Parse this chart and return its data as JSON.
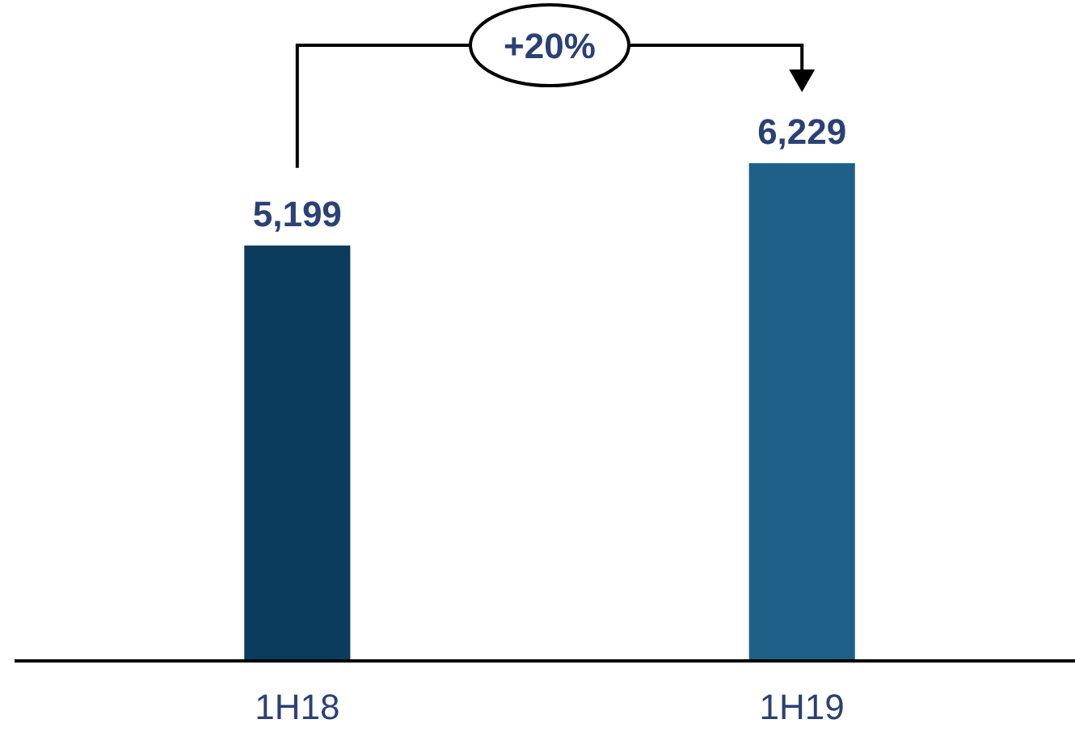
{
  "chart_data": {
    "type": "bar",
    "categories": [
      "1H18",
      "1H19"
    ],
    "values": [
      5199,
      6229
    ],
    "colors": [
      "#0b3c5d",
      "#1f6088"
    ],
    "value_labels": [
      "5,199",
      "6,229"
    ],
    "annotations": [
      "+20%"
    ]
  }
}
